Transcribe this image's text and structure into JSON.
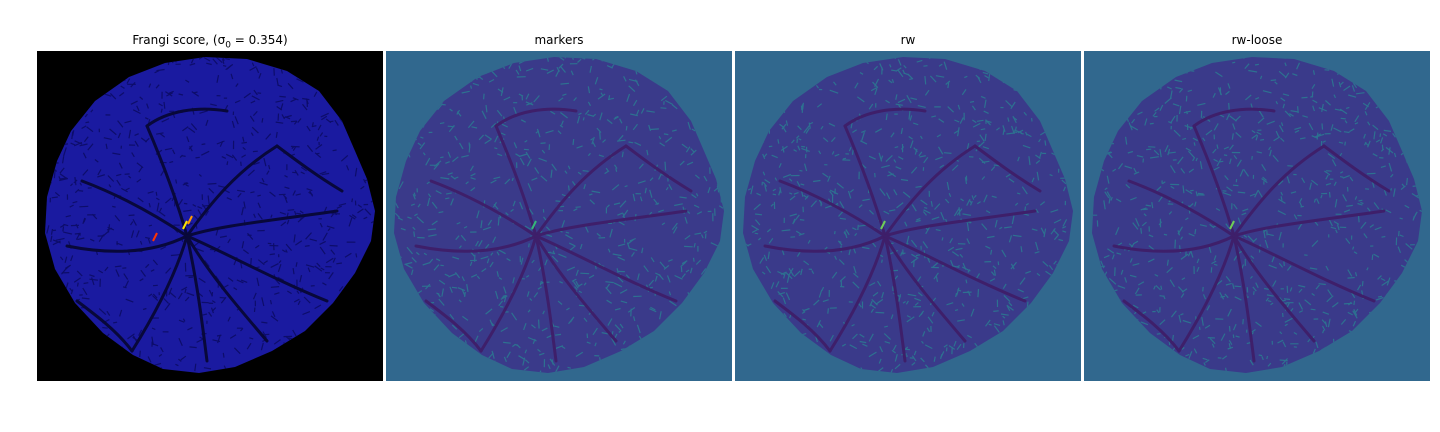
{
  "panels": [
    {
      "title": "Frangi score, (σ",
      "title_sub": "0",
      "title_tail": " = 0.354)",
      "background": "#000000",
      "blob": "#1a1aa0",
      "texture": "#0d0d6a",
      "vessel": "#08083a",
      "highlight": [
        "#ffe600",
        "#ff3300",
        "#ff9900"
      ]
    },
    {
      "title": "markers",
      "background": "#31688e",
      "blob": "#3a3a8a",
      "texture": "#2d7190",
      "vessel": "#3e1f6a",
      "highlight": [
        "#35b779"
      ]
    },
    {
      "title": "rw",
      "background": "#31688e",
      "blob": "#3a3a8a",
      "texture": "#2d7190",
      "vessel": "#3e1f6a",
      "highlight": [
        "#6ece58"
      ]
    },
    {
      "title": "rw-loose",
      "background": "#31688e",
      "blob": "#3a3a8a",
      "texture": "#2d7190",
      "vessel": "#3e1f6a",
      "highlight": [
        "#6ece58"
      ]
    }
  ]
}
